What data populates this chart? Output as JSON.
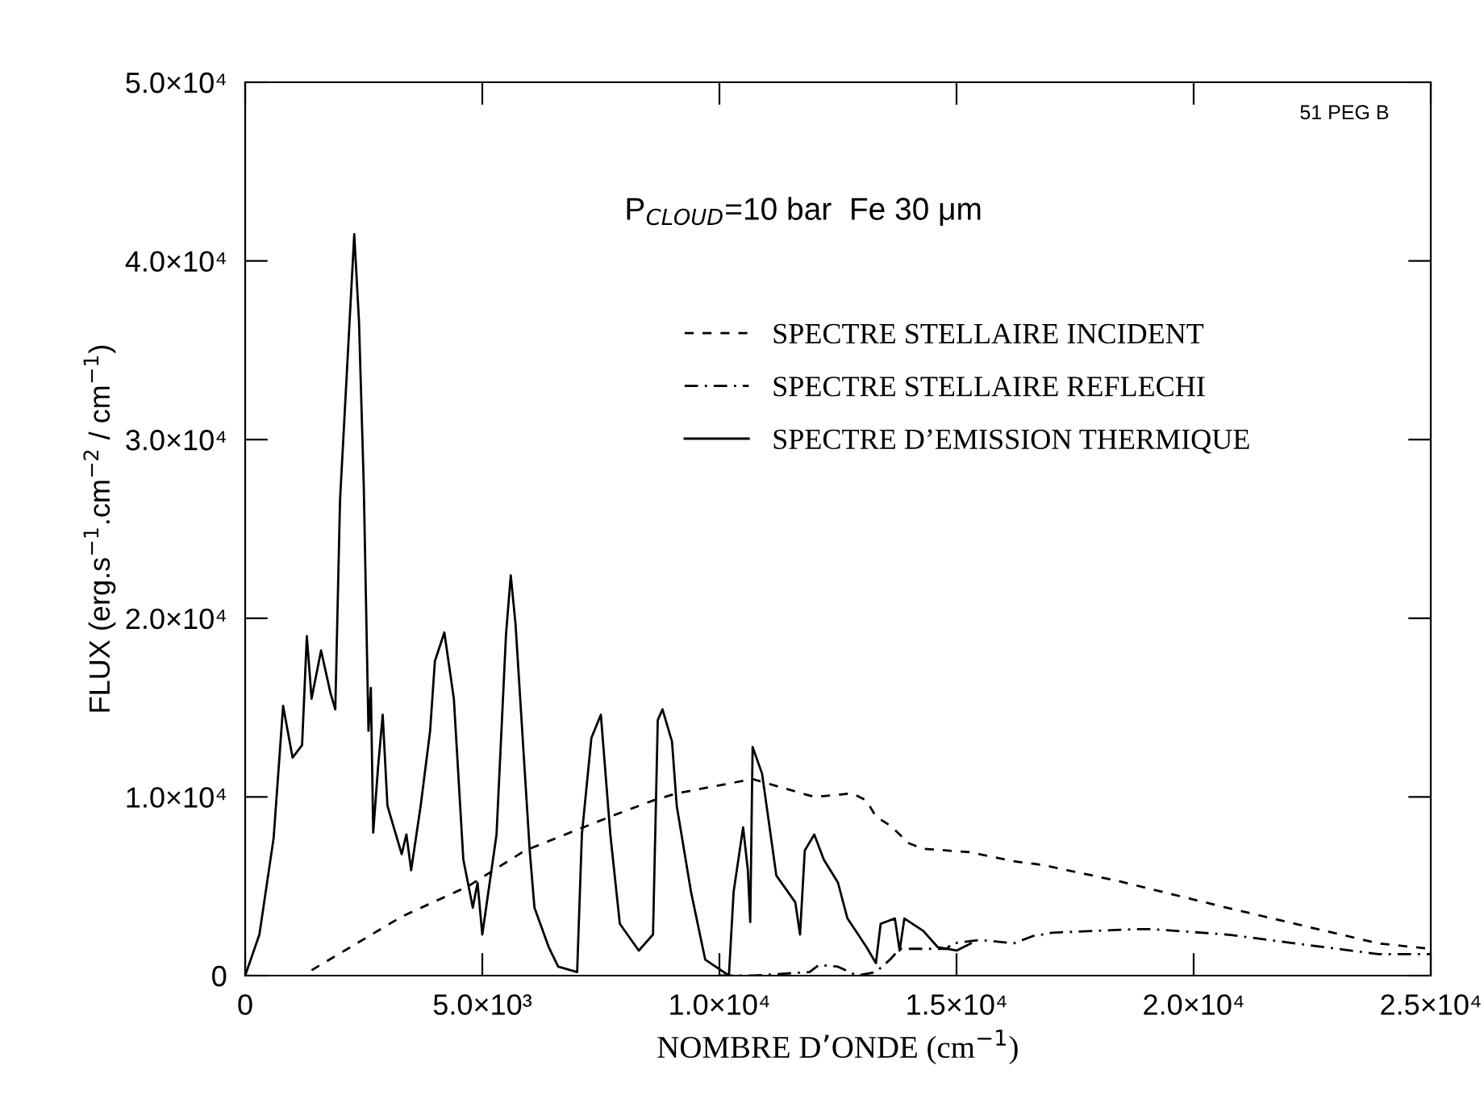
{
  "chart_data": {
    "type": "line",
    "xlabel": "NOMBRE D’ONDE (cm$^{−1}$)",
    "ylabel": "FLUX (erg.s$^{−1}$.cm$^{−2}$ / cm$^{−1}$)",
    "annotations": [
      "51 PEG B",
      "P$_{CLOUD}$=10 bar  Fe 30 μm"
    ],
    "xlim": [
      0,
      25000
    ],
    "ylim": [
      0,
      50000
    ],
    "xticks": [
      0,
      {
        "value": 5000,
        "label": "5.0×10³"
      },
      {
        "value": 10000,
        "label": "1.0×10⁴"
      },
      {
        "value": 15000,
        "label": "1.5×10⁴"
      },
      {
        "value": 20000,
        "label": "2.0×10⁴"
      },
      {
        "value": 25000,
        "label": "2.5×10⁴"
      }
    ],
    "yticks": [
      0,
      {
        "value": 10000,
        "label": "1.0×10⁴"
      },
      {
        "value": 20000,
        "label": "2.0×10⁴"
      },
      {
        "value": 30000,
        "label": "3.0×10⁴"
      },
      {
        "value": 40000,
        "label": "4.0×10⁴"
      },
      {
        "value": 50000,
        "label": "5.0×10⁴"
      }
    ],
    "grid": false,
    "legend": "top right",
    "marker": "none",
    "series": [
      {
        "name": "SPECTRE STELLAIRE INCIDENT",
        "color": "#000000",
        "line_style": "dashed",
        "x": [
          1400,
          3300,
          4700,
          5900,
          7700,
          8600,
          9100,
          10700,
          12000,
          12800,
          13100,
          13300,
          13600,
          14000,
          14300,
          15300,
          16200,
          16800,
          18400,
          20700,
          23900,
          25000
        ],
        "values": [
          300,
          3300,
          5000,
          7000,
          8900,
          9800,
          10200,
          11000,
          10000,
          10200,
          9800,
          8900,
          8400,
          7400,
          7100,
          6900,
          6400,
          6200,
          5300,
          3800,
          1800,
          1500
        ]
      },
      {
        "name": "SPECTRE STELLAIRE REFLECHI",
        "color": "#000000",
        "line_style": "dashdot",
        "x": [
          10000,
          10700,
          11900,
          12100,
          12500,
          12900,
          13300,
          13600,
          13800,
          14200,
          14800,
          14900,
          15500,
          16200,
          16700,
          16900,
          17000,
          18800,
          19100,
          20700,
          23900,
          25000
        ],
        "values": [
          0,
          0,
          200,
          600,
          500,
          0,
          200,
          900,
          1500,
          1500,
          1500,
          1800,
          2000,
          1800,
          2300,
          2300,
          2400,
          2600,
          2600,
          2300,
          1200,
          1200
        ]
      },
      {
        "name": "SPECTRE D’EMISSION THERMIQUE",
        "color": "#000000",
        "line_style": "solid",
        "x": [
          0,
          300,
          600,
          800,
          1000,
          1200,
          1300,
          1400,
          1600,
          1800,
          1900,
          2000,
          2300,
          2400,
          2500,
          2600,
          2650,
          2700,
          2800,
          2900,
          3000,
          3300,
          3400,
          3500,
          3700,
          3900,
          4000,
          4200,
          4400,
          4600,
          4800,
          4900,
          5000,
          5300,
          5500,
          5600,
          5700,
          6000,
          6100,
          6400,
          6600,
          7000,
          7100,
          7300,
          7500,
          7700,
          7900,
          8300,
          8600,
          8700,
          8800,
          9000,
          9100,
          9400,
          9700,
          10200,
          10300,
          10500,
          10600,
          10650,
          10700,
          10900,
          11200,
          11600,
          11700,
          11800,
          12000,
          12200,
          12500,
          12700,
          13100,
          13300,
          13400,
          13700,
          13800,
          13900,
          14300,
          14600,
          15000,
          15300
        ],
        "values": [
          0,
          2300,
          7700,
          15100,
          12200,
          12900,
          19000,
          15500,
          18200,
          15800,
          14900,
          26600,
          41500,
          36600,
          27500,
          13700,
          16100,
          8000,
          11600,
          14600,
          9500,
          6800,
          7900,
          5900,
          9500,
          13700,
          17600,
          19200,
          15500,
          6500,
          3800,
          5200,
          2300,
          7900,
          19100,
          22400,
          19700,
          7000,
          3800,
          1600,
          500,
          200,
          7900,
          13300,
          14600,
          7900,
          2900,
          1400,
          2300,
          14300,
          14900,
          13100,
          9500,
          4700,
          900,
          0,
          4700,
          8300,
          5900,
          3000,
          12800,
          11300,
          5600,
          4100,
          2300,
          7000,
          7900,
          6500,
          5200,
          3200,
          1600,
          700,
          2900,
          3200,
          1400,
          3200,
          2500,
          1600,
          1400,
          1800
        ]
      }
    ]
  }
}
